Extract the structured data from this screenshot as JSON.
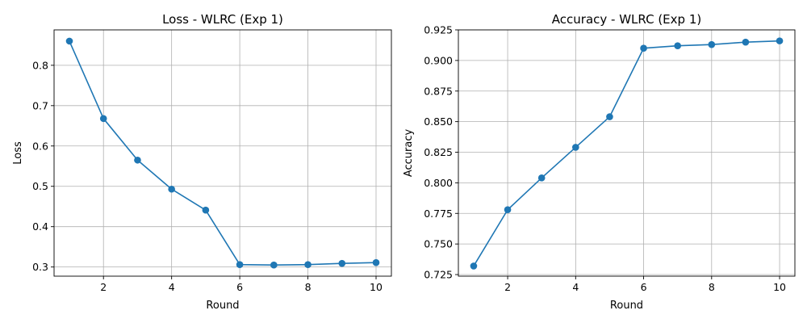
{
  "chart_data": [
    {
      "type": "line",
      "title": "Loss - WLRC  (Exp 1)",
      "xlabel": "Round",
      "ylabel": "Loss",
      "x": [
        1,
        2,
        3,
        4,
        5,
        6,
        7,
        8,
        9,
        10
      ],
      "series": [
        {
          "values": [
            0.86,
            0.668,
            0.565,
            0.493,
            0.441,
            0.306,
            0.305,
            0.306,
            0.309,
            0.311
          ]
        }
      ],
      "xlim": [
        0.55,
        10.45
      ],
      "ylim": [
        0.2773,
        0.8878
      ],
      "xticks": [
        2,
        4,
        6,
        8,
        10
      ],
      "yticks": [
        0.3,
        0.4,
        0.5,
        0.6,
        0.7,
        0.8
      ],
      "ytick_labels": [
        "0.3",
        "0.4",
        "0.5",
        "0.6",
        "0.7",
        "0.8"
      ],
      "grid": true,
      "color": "#1f77b4",
      "marker": "circle"
    },
    {
      "type": "line",
      "title": "Accuracy - WLRC  (Exp 1)",
      "xlabel": "Round",
      "ylabel": "Accuracy",
      "x": [
        1,
        2,
        3,
        4,
        5,
        6,
        7,
        8,
        9,
        10
      ],
      "series": [
        {
          "values": [
            0.732,
            0.778,
            0.804,
            0.829,
            0.854,
            0.91,
            0.912,
            0.913,
            0.915,
            0.916
          ]
        }
      ],
      "xlim": [
        0.55,
        10.45
      ],
      "ylim": [
        0.7237,
        0.925
      ],
      "xticks": [
        2,
        4,
        6,
        8,
        10
      ],
      "yticks": [
        0.725,
        0.75,
        0.775,
        0.8,
        0.825,
        0.85,
        0.875,
        0.9,
        0.925
      ],
      "ytick_labels": [
        "0.725",
        "0.750",
        "0.775",
        "0.800",
        "0.825",
        "0.850",
        "0.875",
        "0.900",
        "0.925"
      ],
      "grid": true,
      "color": "#1f77b4",
      "marker": "circle"
    }
  ]
}
